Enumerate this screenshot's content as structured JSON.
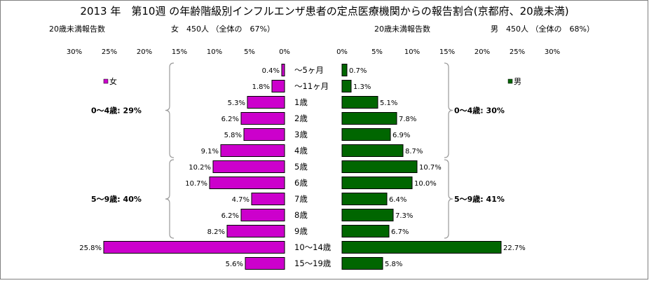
{
  "title": "2013 年　第10週 の年齢階級別インフルエンザ患者の定点医療機関からの報告割合(京都府、20歳未満)",
  "left_header": {
    "label": "20歳未満報告数",
    "summary": "女　450人 （全体の　67%）"
  },
  "right_header": {
    "label": "20歳未満報告数",
    "summary": "男　450人 （全体の　68%）"
  },
  "colors": {
    "female": "#cc00cc",
    "male": "#006600",
    "border": "#000000",
    "brace": "#999999"
  },
  "chart_data": {
    "type": "bar",
    "orientation": "horizontal-butterfly",
    "categories": [
      "～5ヶ月",
      "～11ヶ月",
      "1歳",
      "2歳",
      "3歳",
      "4歳",
      "5歳",
      "6歳",
      "7歳",
      "8歳",
      "9歳",
      "10～14歳",
      "15～19歳"
    ],
    "xlim": [
      0,
      30
    ],
    "ticks": [
      "0%",
      "5%",
      "10%",
      "15%",
      "20%",
      "25%",
      "30%"
    ],
    "series": [
      {
        "name": "女",
        "side": "left",
        "values": [
          0.4,
          1.8,
          5.3,
          6.2,
          5.8,
          9.1,
          10.2,
          10.7,
          4.7,
          6.2,
          8.2,
          25.8,
          5.6
        ],
        "labels": [
          "0.4%",
          "1.8%",
          "5.3%",
          "6.2%",
          "5.8%",
          "9.1%",
          "10.2%",
          "10.7%",
          "4.7%",
          "6.2%",
          "8.2%",
          "25.8%",
          "5.6%"
        ]
      },
      {
        "name": "男",
        "side": "right",
        "values": [
          0.7,
          1.3,
          5.1,
          7.8,
          6.9,
          8.7,
          10.7,
          10.0,
          6.4,
          7.3,
          6.7,
          22.7,
          5.8
        ],
        "labels": [
          "0.7%",
          "1.3%",
          "5.1%",
          "7.8%",
          "6.9%",
          "8.7%",
          "10.7%",
          "10.0%",
          "6.4%",
          "7.3%",
          "6.7%",
          "22.7%",
          "5.8%"
        ]
      }
    ],
    "group_annotations": {
      "left": [
        {
          "label": "0～4歳:  29%",
          "from": 0,
          "to": 5
        },
        {
          "label": "5～9歳:  40%",
          "from": 6,
          "to": 10
        }
      ],
      "right": [
        {
          "label": "0～4歳:  30%",
          "from": 0,
          "to": 5
        },
        {
          "label": "5～9歳:  41%",
          "from": 6,
          "to": 10
        }
      ]
    },
    "legend": {
      "left": "女",
      "right": "男"
    }
  }
}
